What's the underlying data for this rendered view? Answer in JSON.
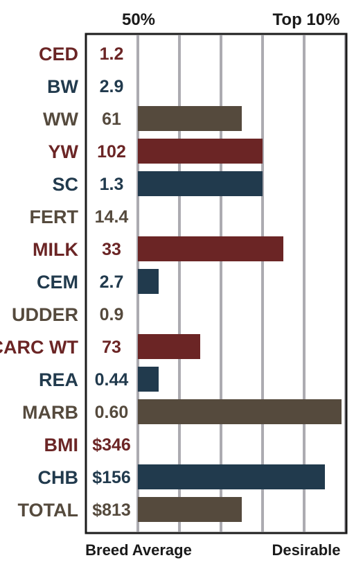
{
  "chart_data": {
    "type": "bar",
    "orientation": "horizontal",
    "header_labels": {
      "left": "50%",
      "right": "Top 10%"
    },
    "footer_labels": {
      "left": "Breed Average",
      "right": "Desirable"
    },
    "grid": true,
    "xlim": [
      0,
      5
    ],
    "rows": [
      {
        "trait": "CED",
        "value_label": "1.2",
        "bar": 0,
        "color": "#6b2525"
      },
      {
        "trait": "BW",
        "value_label": "2.9",
        "bar": 0,
        "color": "#213a4d"
      },
      {
        "trait": "WW",
        "value_label": "61",
        "bar": 2.5,
        "color": "#554a3d"
      },
      {
        "trait": "YW",
        "value_label": "102",
        "bar": 3.0,
        "color": "#6b2525"
      },
      {
        "trait": "SC",
        "value_label": "1.3",
        "bar": 3.0,
        "color": "#213a4d"
      },
      {
        "trait": "FERT",
        "value_label": "14.4",
        "bar": 0,
        "color": "#554a3d"
      },
      {
        "trait": "MILK",
        "value_label": "33",
        "bar": 3.5,
        "color": "#6b2525"
      },
      {
        "trait": "CEM",
        "value_label": "2.7",
        "bar": 0.5,
        "color": "#213a4d"
      },
      {
        "trait": "UDDER",
        "value_label": "0.9",
        "bar": 0,
        "color": "#554a3d"
      },
      {
        "trait": "CARC WT",
        "value_label": "73",
        "bar": 1.5,
        "color": "#6b2525"
      },
      {
        "trait": "REA",
        "value_label": "0.44",
        "bar": 0.5,
        "color": "#213a4d"
      },
      {
        "trait": "MARB",
        "value_label": "0.60",
        "bar": 4.9,
        "color": "#554a3d"
      },
      {
        "trait": "BMI",
        "value_label": "$346",
        "bar": 0,
        "color": "#6b2525"
      },
      {
        "trait": "CHB",
        "value_label": "$156",
        "bar": 4.5,
        "color": "#213a4d"
      },
      {
        "trait": "TOTAL",
        "value_label": "$813",
        "bar": 2.5,
        "color": "#554a3d"
      }
    ]
  }
}
